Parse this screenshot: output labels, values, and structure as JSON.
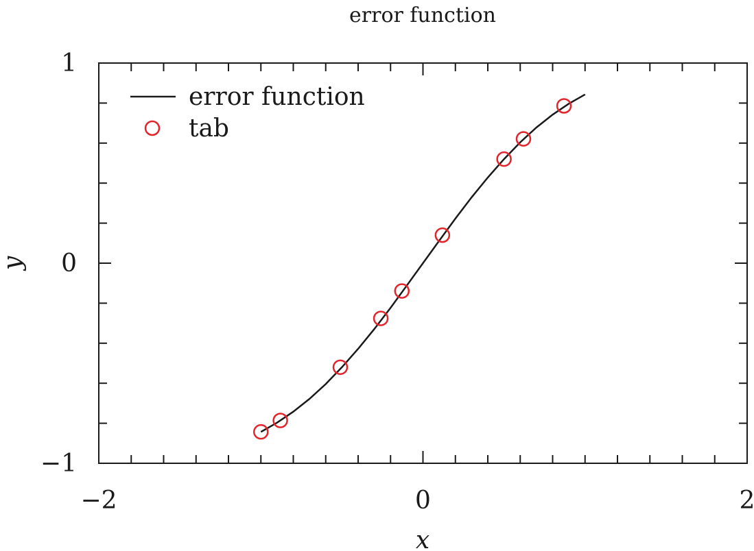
{
  "chart_data": {
    "type": "line",
    "title": "error function",
    "xlabel": "x",
    "ylabel": "y",
    "xlim": [
      -2,
      2
    ],
    "ylim": [
      -1,
      1
    ],
    "x_ticks": [
      -2,
      0,
      2
    ],
    "x_tick_labels": [
      "−2",
      "0",
      "2"
    ],
    "y_ticks": [
      -1,
      0,
      1
    ],
    "y_tick_labels": [
      "−1",
      "0",
      "1"
    ],
    "x_minor_step": 0.2,
    "y_minor_step": 0.2,
    "grid": false,
    "legend_position": "top-left",
    "series": [
      {
        "name": "error function",
        "style": "line",
        "color": "#1a1a1a",
        "x": [
          -1.0,
          -0.9,
          -0.8,
          -0.7,
          -0.6,
          -0.5,
          -0.4,
          -0.3,
          -0.2,
          -0.1,
          0.0,
          0.1,
          0.2,
          0.3,
          0.4,
          0.5,
          0.6,
          0.7,
          0.8,
          0.9,
          1.0
        ],
        "y": [
          -0.843,
          -0.797,
          -0.742,
          -0.678,
          -0.604,
          -0.52,
          -0.428,
          -0.329,
          -0.223,
          -0.112,
          0.0,
          0.112,
          0.223,
          0.329,
          0.428,
          0.52,
          0.604,
          0.678,
          0.742,
          0.797,
          0.843
        ]
      },
      {
        "name": "tab",
        "style": "markers",
        "marker": "open-circle",
        "color": "#e3242b",
        "x": [
          -1.0,
          -0.88,
          -0.51,
          -0.26,
          -0.13,
          0.12,
          0.5,
          0.62,
          0.87
        ],
        "y": [
          -0.843,
          -0.786,
          -0.52,
          -0.276,
          -0.139,
          0.14,
          0.52,
          0.621,
          0.786
        ]
      }
    ]
  }
}
